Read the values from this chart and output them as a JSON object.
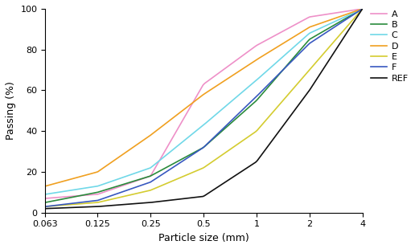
{
  "xlabel": "Particle size (mm)",
  "ylabel": "Passing (%)",
  "x_ticks": [
    0.063,
    0.125,
    0.25,
    0.5,
    1,
    2,
    4
  ],
  "x_tick_labels": [
    "0.063",
    "0.125",
    "0.25",
    "0.5",
    "1",
    "2",
    "4"
  ],
  "ylim": [
    0,
    100
  ],
  "yticks": [
    0,
    20,
    40,
    60,
    80,
    100
  ],
  "series": {
    "A": {
      "color": "#ee90c8",
      "x": [
        0.063,
        0.125,
        0.25,
        0.5,
        1,
        2,
        4
      ],
      "y": [
        7,
        9,
        18,
        63,
        82,
        96,
        100
      ]
    },
    "B": {
      "color": "#2a8b3c",
      "x": [
        0.063,
        0.125,
        0.25,
        0.5,
        1,
        2,
        4
      ],
      "y": [
        5,
        10,
        18,
        32,
        55,
        85,
        100
      ]
    },
    "C": {
      "color": "#70d8e8",
      "x": [
        0.063,
        0.125,
        0.25,
        0.5,
        1,
        2,
        4
      ],
      "y": [
        9,
        13,
        22,
        43,
        65,
        88,
        100
      ]
    },
    "D": {
      "color": "#f0a020",
      "x": [
        0.063,
        0.125,
        0.25,
        0.5,
        1,
        2,
        4
      ],
      "y": [
        13,
        20,
        38,
        58,
        75,
        91,
        100
      ]
    },
    "E": {
      "color": "#d4cc30",
      "x": [
        0.063,
        0.125,
        0.25,
        0.5,
        1,
        2,
        4
      ],
      "y": [
        3,
        5,
        11,
        22,
        40,
        70,
        100
      ]
    },
    "F": {
      "color": "#3858c0",
      "x": [
        0.063,
        0.125,
        0.25,
        0.5,
        1,
        2,
        4
      ],
      "y": [
        3,
        6,
        15,
        32,
        57,
        83,
        100
      ]
    },
    "REF": {
      "color": "#111111",
      "x": [
        0.063,
        0.125,
        0.25,
        0.5,
        1,
        2,
        4
      ],
      "y": [
        2,
        3,
        5,
        8,
        25,
        60,
        100
      ]
    }
  },
  "legend_order": [
    "A",
    "B",
    "C",
    "D",
    "E",
    "F",
    "REF"
  ],
  "linewidth": 1.2,
  "legend_fontsize": 8,
  "axis_fontsize": 9,
  "tick_fontsize": 8
}
